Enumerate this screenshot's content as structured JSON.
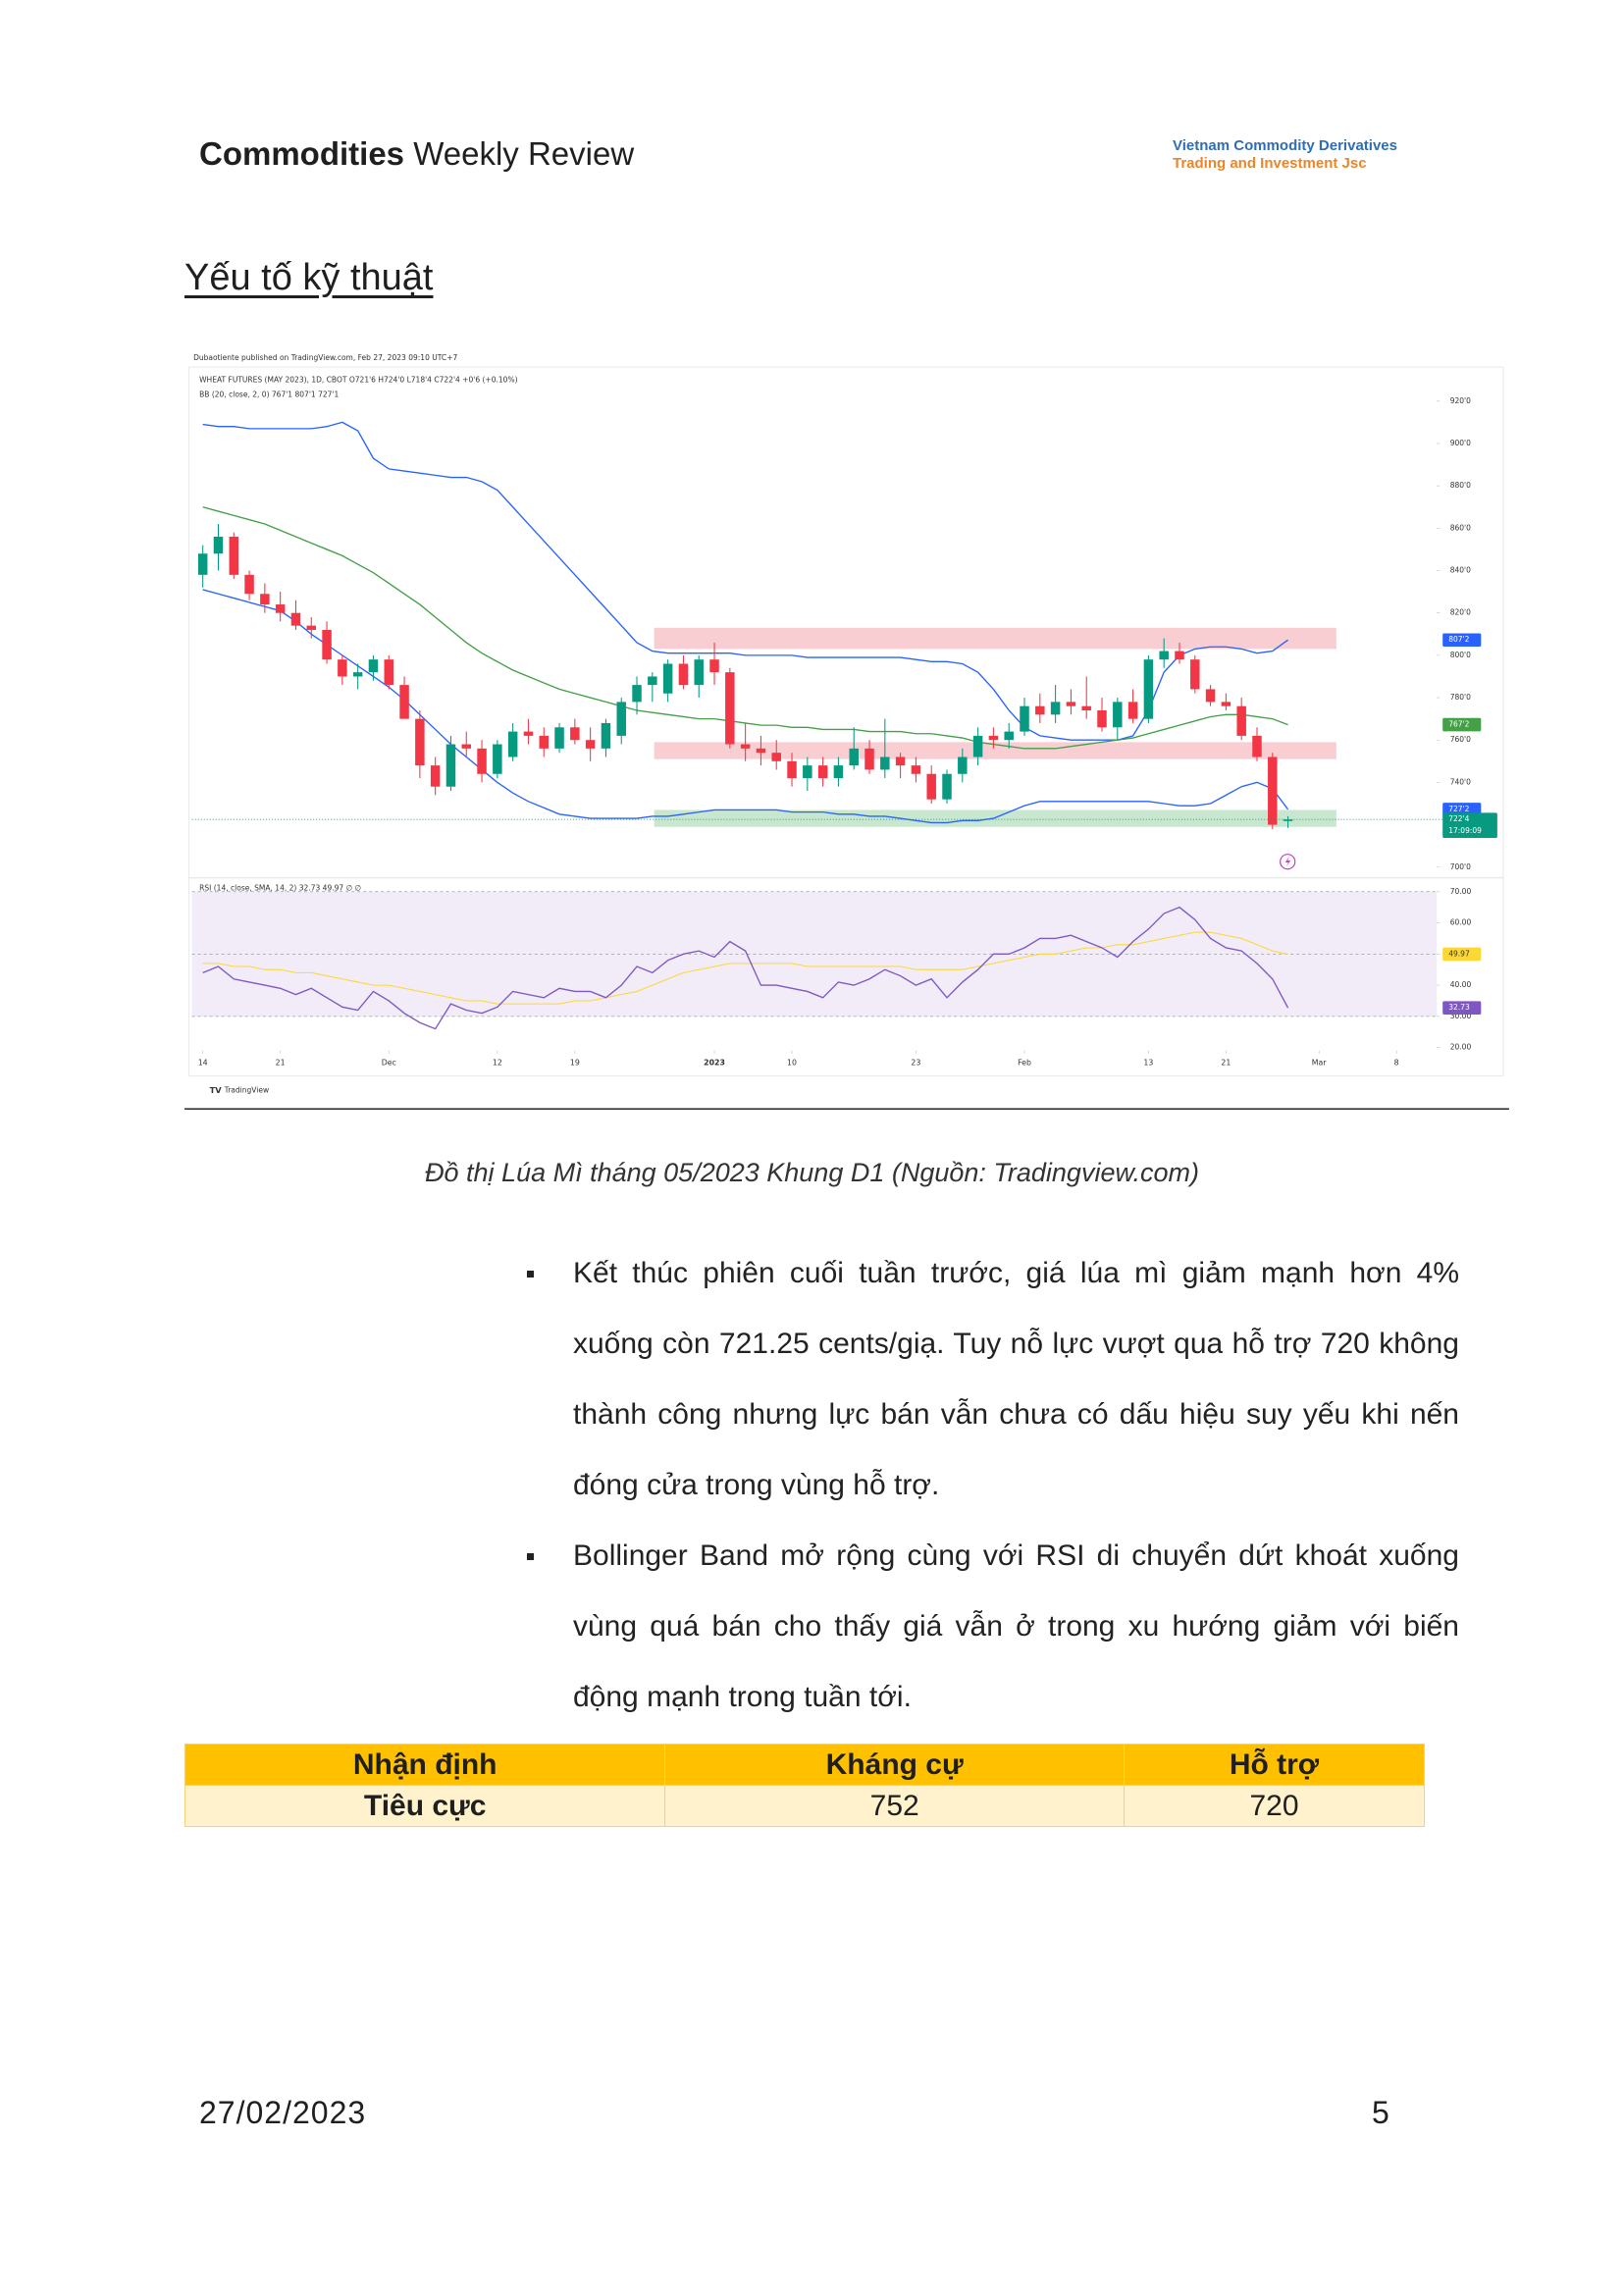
{
  "header": {
    "title_bold": "Commodities",
    "title_rest": "Weekly Review",
    "company_line1": "Vietnam Commodity Derivatives",
    "company_line2": "Trading and Investment Jsc"
  },
  "section_title": "Yếu tố kỹ thuật",
  "chart_data": {
    "type": "candlestick",
    "published": "Dubaotiente published on TradingView.com, Feb 27, 2023 09:10 UTC+7",
    "symbol_line": "WHEAT FUTURES (MAY 2023), 1D, CBOT  O721'6  H724'0  L718'4  C722'4  +0'6 (+0.10%)",
    "bb_line": "BB (20, close, 2, 0)  767'1  807'1  727'1",
    "rsi_line": "RSI (14, close, SMA, 14, 2)  32.73  49.97  ∅  ∅",
    "brand": "TradingView",
    "ylim": [
      697,
      934
    ],
    "yticks": [
      {
        "value": 920,
        "label": "920'0"
      },
      {
        "value": 900,
        "label": "900'0"
      },
      {
        "value": 880,
        "label": "880'0"
      },
      {
        "value": 860,
        "label": "860'0"
      },
      {
        "value": 840,
        "label": "840'0"
      },
      {
        "value": 820,
        "label": "820'0"
      },
      {
        "value": 800,
        "label": "800'0"
      },
      {
        "value": 780,
        "label": "780'0"
      },
      {
        "value": 760,
        "label": "760'0"
      },
      {
        "value": 740,
        "label": "740'0"
      },
      {
        "value": 700,
        "label": "700'0"
      }
    ],
    "xlim": [
      -0.7,
      81.5
    ],
    "xticks": [
      {
        "value": 0,
        "label": "14"
      },
      {
        "value": 5,
        "label": "21"
      },
      {
        "value": 12,
        "label": "Dec"
      },
      {
        "value": 19,
        "label": "12"
      },
      {
        "value": 24,
        "label": "19"
      },
      {
        "value": 33,
        "label": "2023"
      },
      {
        "value": 38,
        "label": "10"
      },
      {
        "value": 46,
        "label": "23"
      },
      {
        "value": 53,
        "label": "Feb"
      },
      {
        "value": 61,
        "label": "13"
      },
      {
        "value": 66,
        "label": "21"
      },
      {
        "value": 72,
        "label": "Mar"
      },
      {
        "value": 77,
        "label": "8"
      }
    ],
    "up_color": "#089981",
    "down_color": "#f23645",
    "candles": [
      [
        838,
        852,
        832,
        848
      ],
      [
        848,
        862,
        840,
        856
      ],
      [
        856,
        858,
        836,
        838
      ],
      [
        838,
        840,
        826,
        829
      ],
      [
        829,
        834,
        820,
        824
      ],
      [
        824,
        830,
        816,
        820
      ],
      [
        820,
        826,
        812,
        814
      ],
      [
        814,
        818,
        808,
        812
      ],
      [
        812,
        816,
        796,
        798
      ],
      [
        798,
        800,
        786,
        790
      ],
      [
        790,
        796,
        784,
        792
      ],
      [
        792,
        800,
        788,
        798
      ],
      [
        798,
        800,
        784,
        786
      ],
      [
        786,
        790,
        770,
        770
      ],
      [
        770,
        774,
        742,
        748
      ],
      [
        748,
        752,
        734,
        738
      ],
      [
        738,
        762,
        736,
        758
      ],
      [
        758,
        764,
        752,
        756
      ],
      [
        756,
        760,
        740,
        744
      ],
      [
        744,
        760,
        742,
        758
      ],
      [
        752,
        768,
        750,
        764
      ],
      [
        764,
        770,
        758,
        762
      ],
      [
        762,
        766,
        752,
        756
      ],
      [
        756,
        768,
        754,
        766
      ],
      [
        766,
        770,
        758,
        760
      ],
      [
        760,
        766,
        750,
        756
      ],
      [
        756,
        770,
        752,
        768
      ],
      [
        762,
        780,
        758,
        778
      ],
      [
        778,
        790,
        772,
        786
      ],
      [
        786,
        792,
        778,
        790
      ],
      [
        782,
        798,
        778,
        796
      ],
      [
        796,
        800,
        784,
        786
      ],
      [
        786,
        800,
        780,
        798
      ],
      [
        798,
        806,
        786,
        792
      ],
      [
        792,
        794,
        756,
        758
      ],
      [
        758,
        768,
        750,
        756
      ],
      [
        756,
        762,
        748,
        754
      ],
      [
        754,
        760,
        746,
        750
      ],
      [
        750,
        754,
        738,
        742
      ],
      [
        742,
        752,
        736,
        748
      ],
      [
        748,
        752,
        738,
        742
      ],
      [
        742,
        752,
        738,
        748
      ],
      [
        748,
        766,
        746,
        756
      ],
      [
        756,
        760,
        744,
        746
      ],
      [
        746,
        770,
        742,
        752
      ],
      [
        752,
        754,
        742,
        748
      ],
      [
        748,
        752,
        740,
        744
      ],
      [
        744,
        748,
        730,
        732
      ],
      [
        732,
        746,
        730,
        744
      ],
      [
        744,
        756,
        740,
        752
      ],
      [
        752,
        766,
        748,
        762
      ],
      [
        762,
        766,
        756,
        760
      ],
      [
        760,
        768,
        756,
        764
      ],
      [
        764,
        780,
        762,
        776
      ],
      [
        776,
        782,
        768,
        772
      ],
      [
        772,
        786,
        768,
        778
      ],
      [
        778,
        784,
        772,
        776
      ],
      [
        776,
        790,
        770,
        774
      ],
      [
        774,
        780,
        764,
        766
      ],
      [
        766,
        780,
        760,
        778
      ],
      [
        778,
        784,
        768,
        770
      ],
      [
        770,
        800,
        768,
        798
      ],
      [
        798,
        808,
        794,
        802
      ],
      [
        802,
        806,
        796,
        798
      ],
      [
        798,
        800,
        782,
        784
      ],
      [
        784,
        786,
        776,
        778
      ],
      [
        778,
        782,
        774,
        776
      ],
      [
        776,
        780,
        760,
        762
      ],
      [
        762,
        766,
        750,
        752
      ],
      [
        752,
        754,
        718,
        720
      ],
      [
        721.75,
        724,
        718.5,
        722.5
      ]
    ],
    "series": [
      {
        "name": "BB upper",
        "color": "#2962ff",
        "values": [
          909,
          908,
          908,
          907,
          907,
          907,
          907,
          907,
          908,
          910,
          906,
          893,
          888,
          887,
          886,
          885,
          884,
          884,
          882,
          878,
          870,
          862,
          854,
          846,
          838,
          830,
          822,
          814,
          806,
          802,
          801,
          801,
          801,
          801,
          801,
          800,
          800,
          800,
          800,
          799,
          799,
          799,
          799,
          799,
          799,
          799,
          798,
          797,
          797,
          796,
          792,
          784,
          774,
          766,
          762,
          761,
          760,
          760,
          760,
          760,
          762,
          774,
          792,
          800,
          803,
          804,
          804,
          803,
          801,
          802,
          807.25
        ]
      },
      {
        "name": "BB basis",
        "color": "#43a047",
        "values": [
          870,
          868,
          866,
          864,
          862,
          859,
          856,
          853,
          850,
          847,
          843,
          839,
          834,
          829,
          824,
          818,
          812,
          806,
          801,
          797,
          793,
          790,
          787,
          784,
          782,
          780,
          778,
          776,
          774,
          773,
          772,
          771,
          770,
          770,
          769,
          768,
          767,
          767,
          766,
          766,
          765,
          765,
          765,
          764,
          764,
          764,
          763,
          763,
          762,
          761,
          759,
          758,
          757,
          756,
          756,
          756,
          757,
          758,
          759,
          760,
          761,
          763,
          765,
          767,
          769,
          771,
          772,
          772,
          771,
          770,
          767.25
        ]
      },
      {
        "name": "BB lower",
        "color": "#2962ff",
        "values": [
          831,
          829,
          827,
          825,
          823,
          821,
          816,
          810,
          805,
          800,
          795,
          790,
          785,
          779,
          772,
          765,
          758,
          752,
          746,
          740,
          735,
          731,
          728,
          725,
          724,
          723,
          723,
          723,
          723,
          724,
          724,
          725,
          726,
          727,
          727,
          727,
          727,
          727,
          726,
          726,
          726,
          725,
          725,
          724,
          724,
          723,
          722,
          721,
          721,
          722,
          722,
          723,
          726,
          729,
          731,
          731,
          731,
          731,
          731,
          731,
          731,
          731,
          730,
          729,
          729,
          730,
          734,
          738,
          740,
          737,
          727.25
        ]
      }
    ],
    "zones": [
      {
        "range": [
          803,
          813
        ],
        "color": "#f7c6cb"
      },
      {
        "range": [
          751,
          759
        ],
        "color": "#f7c6cb"
      },
      {
        "range": [
          719,
          727
        ],
        "color": "#bfe3c6"
      }
    ],
    "price_badges": [
      {
        "value": 807.25,
        "label": "807'2",
        "color": "#2962ff"
      },
      {
        "value": 767.25,
        "label": "767'2",
        "color": "#43a047"
      },
      {
        "value": 727.25,
        "label": "727'2",
        "color": "#2962ff"
      },
      {
        "value": 722.5,
        "label": "722'4",
        "time": "17:09:09",
        "color": "#089981"
      }
    ],
    "rsi": {
      "ylim": [
        19,
        73
      ],
      "yticks": [
        {
          "value": 70,
          "label": "70.00"
        },
        {
          "value": 60,
          "label": "60.00"
        },
        {
          "value": 50,
          "label": "50.00"
        },
        {
          "value": 40,
          "label": "40.00"
        },
        {
          "value": 30,
          "label": "30.00"
        },
        {
          "value": 20,
          "label": "20.00"
        }
      ],
      "levels": [
        70,
        50,
        30
      ],
      "series": [
        {
          "name": "RSI",
          "color": "#7e57c2",
          "values": [
            44,
            46,
            42,
            41,
            40,
            39,
            37,
            39,
            36,
            33,
            32,
            38,
            35,
            31,
            28,
            26,
            34,
            32,
            31,
            33,
            38,
            37,
            36,
            39,
            38,
            38,
            36,
            40,
            46,
            44,
            48,
            50,
            51,
            49,
            54,
            51,
            40,
            40,
            39,
            38,
            36,
            41,
            40,
            42,
            45,
            43,
            40,
            42,
            36,
            41,
            45,
            50,
            50,
            52,
            55,
            55,
            56,
            54,
            52,
            49,
            54,
            58,
            63,
            65,
            61,
            55,
            52,
            51,
            47,
            42,
            32.73
          ]
        },
        {
          "name": "RSI-based MA",
          "color": "#fdd835",
          "values": [
            47,
            47,
            46,
            46,
            45,
            45,
            44,
            44,
            43,
            42,
            41,
            40,
            40,
            39,
            38,
            37,
            36,
            35,
            35,
            34,
            34,
            34,
            34,
            34,
            35,
            35,
            36,
            37,
            38,
            40,
            42,
            44,
            45,
            46,
            47,
            47,
            47,
            47,
            47,
            46,
            46,
            46,
            46,
            46,
            46,
            46,
            45,
            45,
            45,
            45,
            46,
            47,
            48,
            49,
            50,
            50,
            51,
            52,
            52,
            53,
            53,
            54,
            55,
            56,
            57,
            57,
            56,
            55,
            53,
            51,
            49.97
          ]
        }
      ],
      "badges": [
        {
          "value": 49.97,
          "label": "49.97",
          "color": "#fdd835"
        },
        {
          "value": 32.73,
          "label": "32.73",
          "color": "#7e57c2"
        }
      ]
    }
  },
  "caption": "Đồ thị Lúa Mì tháng 05/2023 Khung D1 (Nguồn: Tradingview.com)",
  "bullets": [
    "Kết thúc phiên cuối tuần trước, giá lúa mì giảm mạnh hơn 4% xuống còn 721.25 cents/giạ. Tuy nỗ lực vượt qua hỗ trợ 720 không thành công nhưng lực bán vẫn chưa có dấu hiệu suy yếu khi nến đóng cửa trong vùng hỗ trợ.",
    "Bollinger Band mở rộng cùng với RSI di chuyển dứt khoát xuống vùng quá bán cho thấy giá vẫn ở trong xu hướng giảm với biến động mạnh trong tuần tới."
  ],
  "table": {
    "header": [
      "Nhận định",
      "Kháng cự",
      "Hỗ trợ"
    ],
    "rows": [
      [
        "Tiêu cực",
        752,
        720
      ]
    ]
  },
  "footer": {
    "date": "27/02/2023",
    "page": "5"
  }
}
